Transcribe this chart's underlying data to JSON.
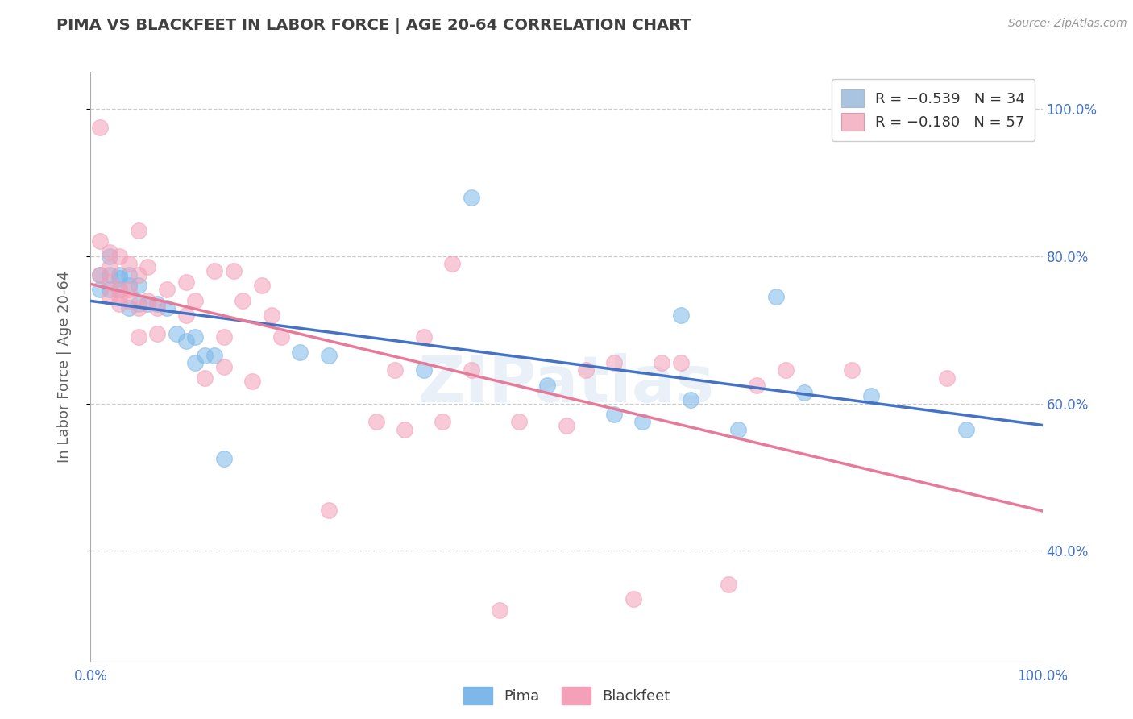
{
  "title": "PIMA VS BLACKFEET IN LABOR FORCE | AGE 20-64 CORRELATION CHART",
  "source_text": "Source: ZipAtlas.com",
  "ylabel": "In Labor Force | Age 20-64",
  "xlim": [
    0.0,
    1.0
  ],
  "ylim": [
    0.25,
    1.05
  ],
  "y_ticks": [
    0.4,
    0.6,
    0.8,
    1.0
  ],
  "y_tick_labels_right": [
    "40.0%",
    "60.0%",
    "80.0%",
    "100.0%"
  ],
  "watermark": "ZIPatlas",
  "pima_color": "#7db8e8",
  "blackfeet_color": "#f4a0b8",
  "pima_line_color": "#4472c4",
  "blackfeet_line_color": "#e87a99",
  "background_color": "#ffffff",
  "grid_color": "#cccccc",
  "title_color": "#404040",
  "axis_label_color": "#606060",
  "tick_color": "#4472c4",
  "pima_scatter": [
    [
      0.01,
      0.775
    ],
    [
      0.01,
      0.755
    ],
    [
      0.02,
      0.8
    ],
    [
      0.02,
      0.775
    ],
    [
      0.02,
      0.755
    ],
    [
      0.03,
      0.775
    ],
    [
      0.03,
      0.77
    ],
    [
      0.03,
      0.755
    ],
    [
      0.04,
      0.775
    ],
    [
      0.04,
      0.76
    ],
    [
      0.04,
      0.73
    ],
    [
      0.05,
      0.76
    ],
    [
      0.05,
      0.735
    ],
    [
      0.06,
      0.735
    ],
    [
      0.07,
      0.735
    ],
    [
      0.08,
      0.73
    ],
    [
      0.09,
      0.695
    ],
    [
      0.1,
      0.685
    ],
    [
      0.11,
      0.69
    ],
    [
      0.11,
      0.655
    ],
    [
      0.12,
      0.665
    ],
    [
      0.13,
      0.665
    ],
    [
      0.14,
      0.525
    ],
    [
      0.22,
      0.67
    ],
    [
      0.25,
      0.665
    ],
    [
      0.35,
      0.645
    ],
    [
      0.4,
      0.88
    ],
    [
      0.48,
      0.625
    ],
    [
      0.55,
      0.585
    ],
    [
      0.58,
      0.575
    ],
    [
      0.62,
      0.72
    ],
    [
      0.63,
      0.605
    ],
    [
      0.68,
      0.565
    ],
    [
      0.72,
      0.745
    ],
    [
      0.75,
      0.615
    ],
    [
      0.82,
      0.61
    ],
    [
      0.92,
      0.565
    ]
  ],
  "blackfeet_scatter": [
    [
      0.01,
      0.975
    ],
    [
      0.01,
      0.775
    ],
    [
      0.01,
      0.82
    ],
    [
      0.02,
      0.805
    ],
    [
      0.02,
      0.785
    ],
    [
      0.02,
      0.765
    ],
    [
      0.02,
      0.745
    ],
    [
      0.03,
      0.8
    ],
    [
      0.03,
      0.755
    ],
    [
      0.03,
      0.745
    ],
    [
      0.03,
      0.735
    ],
    [
      0.04,
      0.79
    ],
    [
      0.04,
      0.755
    ],
    [
      0.04,
      0.74
    ],
    [
      0.05,
      0.835
    ],
    [
      0.05,
      0.775
    ],
    [
      0.05,
      0.73
    ],
    [
      0.05,
      0.69
    ],
    [
      0.06,
      0.785
    ],
    [
      0.06,
      0.74
    ],
    [
      0.07,
      0.73
    ],
    [
      0.07,
      0.695
    ],
    [
      0.08,
      0.755
    ],
    [
      0.1,
      0.765
    ],
    [
      0.1,
      0.72
    ],
    [
      0.11,
      0.74
    ],
    [
      0.12,
      0.635
    ],
    [
      0.13,
      0.78
    ],
    [
      0.14,
      0.69
    ],
    [
      0.14,
      0.65
    ],
    [
      0.15,
      0.78
    ],
    [
      0.16,
      0.74
    ],
    [
      0.17,
      0.63
    ],
    [
      0.18,
      0.76
    ],
    [
      0.19,
      0.72
    ],
    [
      0.2,
      0.69
    ],
    [
      0.25,
      0.455
    ],
    [
      0.3,
      0.575
    ],
    [
      0.32,
      0.645
    ],
    [
      0.33,
      0.565
    ],
    [
      0.35,
      0.69
    ],
    [
      0.37,
      0.575
    ],
    [
      0.38,
      0.79
    ],
    [
      0.4,
      0.645
    ],
    [
      0.43,
      0.32
    ],
    [
      0.45,
      0.575
    ],
    [
      0.5,
      0.57
    ],
    [
      0.52,
      0.645
    ],
    [
      0.55,
      0.655
    ],
    [
      0.57,
      0.335
    ],
    [
      0.6,
      0.655
    ],
    [
      0.62,
      0.655
    ],
    [
      0.67,
      0.355
    ],
    [
      0.7,
      0.625
    ],
    [
      0.73,
      0.645
    ],
    [
      0.8,
      0.645
    ],
    [
      0.9,
      0.635
    ]
  ]
}
